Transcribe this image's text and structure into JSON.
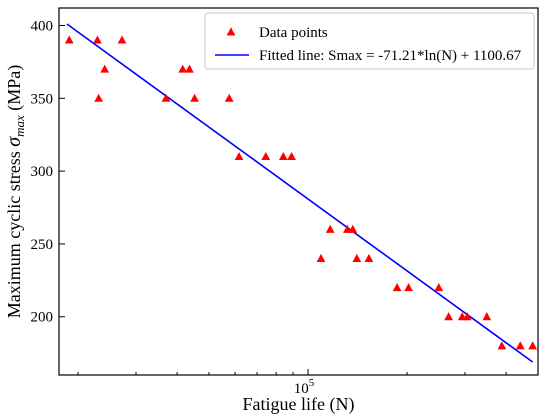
{
  "chart_data": {
    "type": "scatter",
    "title": "",
    "xlabel": "Fatigue life (N)",
    "ylabel_prefix": "Maximum cyclic stress ",
    "ylabel_symbol": "σ",
    "ylabel_subscript": "max",
    "ylabel_suffix": " (MPa)",
    "xscale": "log",
    "xlim": [
      17500,
      500000
    ],
    "ylim": [
      160,
      412
    ],
    "x_ticks": [
      {
        "value": 100000,
        "label_base": "10",
        "label_exp": "5"
      }
    ],
    "y_ticks": [
      {
        "value": 200,
        "label": "200"
      },
      {
        "value": 250,
        "label": "250"
      },
      {
        "value": 300,
        "label": "300"
      },
      {
        "value": 350,
        "label": "350"
      },
      {
        "value": 400,
        "label": "400"
      }
    ],
    "grid": false,
    "legend_position": "top-right",
    "series": [
      {
        "name": "Data points",
        "kind": "scatter",
        "marker": "triangle",
        "color": "#ff0000",
        "points": [
          {
            "x": 18800,
            "y": 390
          },
          {
            "x": 22900,
            "y": 390
          },
          {
            "x": 27200,
            "y": 390
          },
          {
            "x": 23100,
            "y": 350
          },
          {
            "x": 24100,
            "y": 370
          },
          {
            "x": 37000,
            "y": 350
          },
          {
            "x": 41600,
            "y": 370
          },
          {
            "x": 43600,
            "y": 370
          },
          {
            "x": 45200,
            "y": 350
          },
          {
            "x": 57600,
            "y": 350
          },
          {
            "x": 61700,
            "y": 310
          },
          {
            "x": 74400,
            "y": 310
          },
          {
            "x": 84100,
            "y": 310
          },
          {
            "x": 89100,
            "y": 310
          },
          {
            "x": 109500,
            "y": 240
          },
          {
            "x": 116800,
            "y": 260
          },
          {
            "x": 131700,
            "y": 260
          },
          {
            "x": 136800,
            "y": 260
          },
          {
            "x": 140700,
            "y": 240
          },
          {
            "x": 153100,
            "y": 240
          },
          {
            "x": 186500,
            "y": 220
          },
          {
            "x": 202100,
            "y": 220
          },
          {
            "x": 249700,
            "y": 220
          },
          {
            "x": 267500,
            "y": 200
          },
          {
            "x": 294200,
            "y": 200
          },
          {
            "x": 304900,
            "y": 200
          },
          {
            "x": 349500,
            "y": 200
          },
          {
            "x": 388200,
            "y": 180
          },
          {
            "x": 441700,
            "y": 180
          },
          {
            "x": 481600,
            "y": 180
          }
        ]
      },
      {
        "name": "Fitted line: Smax = -71.21*ln(N) + 1100.67",
        "kind": "line",
        "color": "#0000ff",
        "slope": -71.21,
        "intercept": 1100.67,
        "x_range": [
          18500,
          481600
        ]
      }
    ]
  }
}
